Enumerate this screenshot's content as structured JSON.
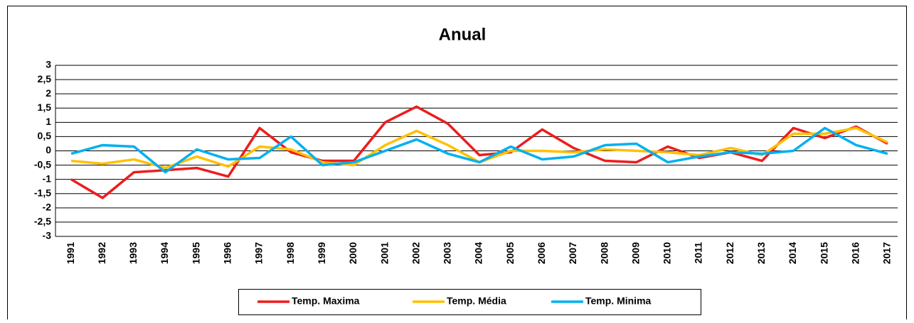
{
  "chart_data": {
    "type": "line",
    "title": "Anual",
    "categories": [
      "1991",
      "1992",
      "1993",
      "1994",
      "1995",
      "1996",
      "1997",
      "1998",
      "1999",
      "2000",
      "2001",
      "2002",
      "2003",
      "2004",
      "2005",
      "2006",
      "2007",
      "2008",
      "2009",
      "2010",
      "2011",
      "2012",
      "2013",
      "2014",
      "2015",
      "2016",
      "2017"
    ],
    "series": [
      {
        "name": "Temp. Maxima",
        "color": "#ee1c1c",
        "values": [
          -1.0,
          -1.65,
          -0.75,
          -0.68,
          -0.6,
          -0.9,
          0.8,
          -0.05,
          -0.35,
          -0.35,
          1.0,
          1.55,
          0.95,
          -0.15,
          -0.05,
          0.75,
          0.1,
          -0.35,
          -0.4,
          0.15,
          -0.25,
          -0.05,
          -0.35,
          0.8,
          0.45,
          0.85,
          0.25
        ]
      },
      {
        "name": "Temp. Média",
        "color": "#ffc000",
        "values": [
          -0.35,
          -0.45,
          -0.3,
          -0.6,
          -0.2,
          -0.55,
          0.15,
          0.05,
          -0.4,
          -0.5,
          0.2,
          0.7,
          0.2,
          -0.4,
          0.0,
          0.0,
          -0.05,
          0.05,
          0.0,
          -0.05,
          -0.15,
          0.1,
          -0.15,
          0.6,
          0.6,
          0.8,
          0.3
        ]
      },
      {
        "name": "Temp. Minima",
        "color": "#00b0f0",
        "values": [
          -0.1,
          0.2,
          0.15,
          -0.75,
          0.05,
          -0.3,
          -0.25,
          0.5,
          -0.5,
          -0.4,
          0.0,
          0.4,
          -0.1,
          -0.4,
          0.15,
          -0.3,
          -0.2,
          0.2,
          0.25,
          -0.4,
          -0.2,
          -0.05,
          -0.1,
          0.0,
          0.8,
          0.2,
          -0.1
        ]
      }
    ],
    "ylim": [
      -3,
      3
    ],
    "yticks": [
      -3,
      {
        "value": -2.5,
        "label": "-2,5"
      },
      -2,
      {
        "value": -1.5,
        "label": "-1,5"
      },
      -1,
      {
        "value": -0.5,
        "label": "-0,5"
      },
      0,
      {
        "value": 0.5,
        "label": "0,5"
      },
      1,
      {
        "value": 1.5,
        "label": "1,5"
      },
      2,
      {
        "value": 2.5,
        "label": "2,5"
      },
      3
    ],
    "grid": true,
    "legend": "bottom"
  }
}
